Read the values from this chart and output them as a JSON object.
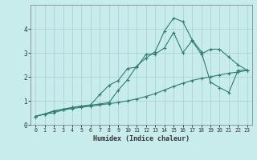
{
  "xlabel": "Humidex (Indice chaleur)",
  "bg_color": "#c8ecec",
  "grid_color": "#aad4d4",
  "line_color": "#2e7d6e",
  "xlim": [
    -0.5,
    23.5
  ],
  "ylim": [
    0,
    5
  ],
  "x_ticks": [
    0,
    1,
    2,
    3,
    4,
    5,
    6,
    7,
    8,
    9,
    10,
    11,
    12,
    13,
    14,
    15,
    16,
    17,
    18,
    19,
    20,
    21,
    22,
    23
  ],
  "y_ticks": [
    0,
    1,
    2,
    3,
    4
  ],
  "line1_x": [
    0,
    1,
    2,
    3,
    4,
    5,
    6,
    7,
    8,
    9,
    10,
    11,
    12,
    13,
    14,
    15,
    16,
    17,
    18,
    19,
    20,
    21,
    22,
    23
  ],
  "line1_y": [
    0.35,
    0.45,
    0.5,
    0.62,
    0.68,
    0.73,
    0.78,
    0.83,
    0.88,
    0.93,
    1.0,
    1.08,
    1.18,
    1.3,
    1.45,
    1.6,
    1.73,
    1.85,
    1.93,
    2.0,
    2.08,
    2.15,
    2.2,
    2.27
  ],
  "line2_x": [
    0,
    1,
    2,
    3,
    4,
    5,
    6,
    7,
    8,
    9,
    10,
    11,
    12,
    13,
    14,
    15,
    16,
    17,
    18,
    19,
    20,
    21,
    22,
    23
  ],
  "line2_y": [
    0.35,
    0.45,
    0.58,
    0.65,
    0.72,
    0.78,
    0.83,
    1.27,
    1.65,
    1.85,
    2.35,
    2.4,
    2.93,
    2.95,
    3.2,
    3.85,
    3.0,
    3.5,
    2.95,
    3.15,
    3.15,
    2.82,
    2.5,
    2.27
  ],
  "line3_x": [
    0,
    1,
    2,
    3,
    4,
    5,
    6,
    7,
    8,
    9,
    10,
    11,
    12,
    13,
    14,
    15,
    16,
    17,
    18,
    19,
    20,
    21,
    22,
    23
  ],
  "line3_y": [
    0.35,
    0.45,
    0.57,
    0.64,
    0.72,
    0.77,
    0.82,
    0.87,
    0.93,
    1.45,
    1.88,
    2.45,
    2.78,
    3.05,
    3.9,
    4.45,
    4.3,
    3.55,
    3.05,
    1.78,
    1.55,
    1.35,
    2.27,
    2.27
  ]
}
